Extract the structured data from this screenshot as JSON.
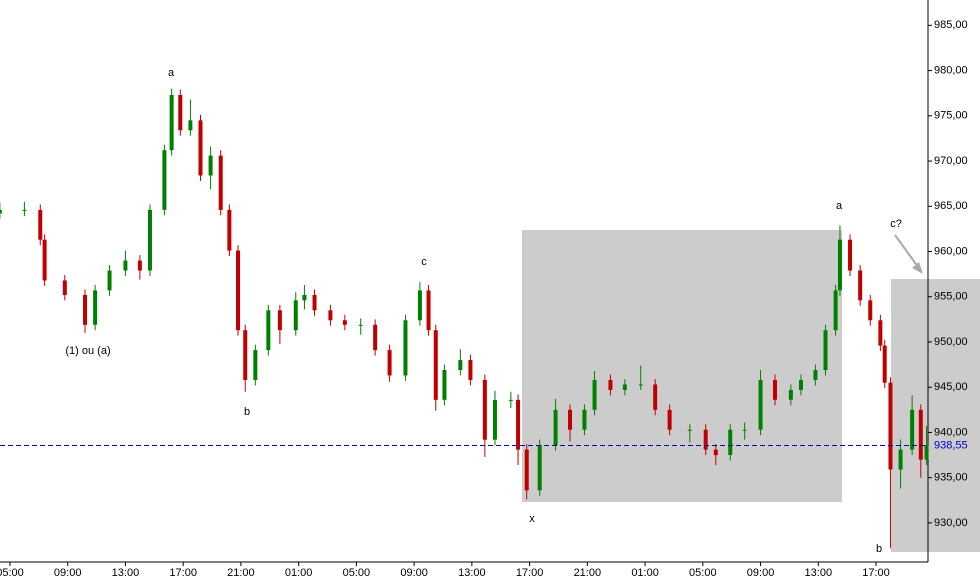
{
  "chart_data": {
    "type": "candlestick",
    "up_color": "#008000",
    "down_color": "#c00000",
    "x": [
      -0.7,
      1.0,
      2.1,
      2.4,
      3.8,
      5.2,
      5.9,
      6.9,
      8.0,
      9.0,
      9.7,
      10.7,
      11.2,
      11.8,
      12.5,
      13.2,
      13.9,
      14.6,
      15.2,
      15.8,
      16.3,
      17.0,
      17.9,
      18.7,
      19.8,
      20.4,
      21.1,
      22.2,
      23.2,
      24.3,
      25.3,
      26.3,
      27.4,
      28.4,
      29.0,
      29.5,
      30.1,
      31.2,
      31.9,
      32.9,
      33.6,
      34.7,
      35.2,
      35.8,
      36.7,
      37.8,
      38.8,
      39.8,
      40.5,
      41.6,
      42.6,
      43.7,
      44.7,
      45.7,
      47.1,
      48.2,
      48.9,
      49.9,
      50.9,
      52.0,
      53.0,
      54.1,
      54.8,
      55.8,
      56.5,
      57.2,
      57.5,
      58.2,
      58.9,
      59.6,
      60.3,
      60.6,
      61.0,
      61.7,
      62.5,
      63.1,
      63.5
    ],
    "open": [
      964.2,
      964.6,
      964.6,
      961.3,
      956.8,
      955.2,
      951.9,
      955.7,
      957.9,
      959.0,
      957.9,
      964.6,
      971.2,
      977.3,
      973.4,
      974.5,
      968.4,
      970.6,
      964.6,
      960.1,
      951.3,
      945.8,
      949.1,
      953.5,
      951.3,
      954.6,
      955.2,
      953.5,
      952.4,
      951.9,
      951.9,
      949.1,
      946.3,
      952.4,
      955.7,
      951.3,
      943.6,
      946.9,
      948.0,
      945.8,
      939.2,
      943.6,
      943.6,
      938.1,
      933.6,
      938.6,
      942.5,
      940.3,
      942.5,
      945.8,
      944.7,
      945.3,
      945.3,
      942.5,
      940.3,
      940.3,
      938.1,
      937.5,
      940.3,
      940.3,
      945.8,
      943.6,
      944.7,
      945.8,
      946.9,
      951.3,
      955.7,
      961.3,
      957.9,
      954.6,
      952.4,
      949.6,
      945.5,
      935.9,
      938.1,
      942.5,
      937.0
    ],
    "high": [
      965.4,
      965.5,
      965.2,
      961.9,
      957.4,
      955.8,
      956.3,
      958.5,
      960.1,
      959.6,
      965.2,
      971.8,
      978.0,
      977.9,
      976.8,
      975.1,
      971.6,
      971.2,
      965.2,
      960.7,
      951.9,
      949.7,
      954.1,
      954.1,
      955.5,
      956.3,
      955.8,
      954.1,
      953.0,
      952.6,
      952.5,
      949.7,
      953.0,
      956.6,
      956.3,
      951.9,
      947.5,
      949.2,
      948.6,
      946.4,
      944.6,
      944.5,
      944.2,
      938.7,
      939.2,
      943.7,
      943.1,
      943.1,
      946.8,
      946.4,
      945.9,
      947.4,
      945.9,
      943.1,
      940.9,
      940.9,
      938.7,
      940.9,
      941.1,
      946.9,
      946.4,
      945.3,
      946.4,
      947.5,
      951.9,
      956.3,
      962.9,
      961.9,
      958.5,
      955.2,
      953.0,
      950.2,
      946.1,
      939.2,
      944.1,
      943.1,
      940.7
    ],
    "low": [
      963.6,
      963.9,
      960.7,
      956.2,
      954.6,
      951.0,
      951.3,
      955.1,
      957.3,
      956.9,
      957.3,
      964.0,
      970.6,
      972.8,
      972.8,
      967.8,
      966.9,
      964.0,
      959.5,
      950.7,
      944.5,
      945.2,
      948.5,
      949.8,
      950.7,
      953.6,
      952.9,
      951.8,
      951.3,
      950.8,
      948.5,
      945.6,
      945.7,
      951.8,
      950.7,
      942.4,
      943.0,
      946.3,
      945.2,
      937.3,
      938.6,
      942.7,
      936.4,
      932.6,
      933.0,
      938.0,
      939.0,
      939.7,
      941.9,
      944.1,
      944.1,
      944.7,
      941.9,
      939.7,
      938.9,
      937.5,
      936.4,
      936.9,
      939.2,
      939.7,
      943.0,
      943.0,
      944.1,
      945.2,
      946.3,
      950.7,
      955.1,
      957.3,
      954.0,
      951.8,
      949.0,
      944.9,
      927.2,
      933.8,
      937.5,
      935.0,
      936.4
    ],
    "close": [
      964.6,
      964.6,
      961.3,
      956.8,
      955.2,
      951.9,
      955.7,
      957.9,
      959.0,
      957.9,
      964.6,
      971.2,
      977.3,
      973.4,
      974.5,
      968.4,
      970.6,
      964.6,
      960.1,
      951.3,
      945.8,
      949.1,
      953.5,
      951.3,
      954.6,
      955.2,
      953.5,
      952.4,
      951.9,
      951.9,
      949.1,
      946.3,
      952.4,
      955.7,
      951.3,
      943.6,
      946.9,
      948.0,
      945.8,
      939.2,
      943.6,
      943.6,
      938.1,
      933.6,
      938.6,
      942.5,
      940.3,
      942.5,
      945.8,
      944.7,
      945.3,
      945.3,
      942.5,
      940.3,
      940.3,
      938.1,
      937.5,
      940.3,
      940.3,
      945.8,
      943.6,
      944.7,
      945.8,
      946.9,
      951.3,
      955.7,
      961.3,
      957.9,
      954.6,
      952.4,
      949.6,
      945.5,
      935.9,
      938.1,
      942.5,
      937.0,
      938.6
    ],
    "xlim": [
      -0.69,
      63.6
    ],
    "xticks": [
      {
        "value": 0,
        "label": "05:00"
      },
      {
        "value": 4,
        "label": "09:00"
      },
      {
        "value": 8,
        "label": "13:00"
      },
      {
        "value": 12,
        "label": "17:00"
      },
      {
        "value": 16,
        "label": "21:00"
      },
      {
        "value": 20,
        "label": "01:00"
      },
      {
        "value": 24,
        "label": "05:00"
      },
      {
        "value": 28,
        "label": "09:00"
      },
      {
        "value": 32,
        "label": "13:00"
      },
      {
        "value": 36,
        "label": "17:00"
      },
      {
        "value": 40,
        "label": "21:00"
      },
      {
        "value": 44,
        "label": "01:00"
      },
      {
        "value": 48,
        "label": "05:00"
      },
      {
        "value": 52,
        "label": "09:00"
      },
      {
        "value": 56,
        "label": "13:00"
      },
      {
        "value": 60,
        "label": "17:00"
      }
    ],
    "ylim": [
      925.9,
      987.8
    ],
    "yticks": [
      {
        "value": 930,
        "label": "930,00"
      },
      {
        "value": 935,
        "label": "935,00"
      },
      {
        "value": 940,
        "label": "940,00"
      },
      {
        "value": 945,
        "label": "945,00"
      },
      {
        "value": 950,
        "label": "950,00"
      },
      {
        "value": 955,
        "label": "955,00"
      },
      {
        "value": 960,
        "label": "960,00"
      },
      {
        "value": 965,
        "label": "965,00"
      },
      {
        "value": 970,
        "label": "970,00"
      },
      {
        "value": 975,
        "label": "975,00"
      },
      {
        "value": 980,
        "label": "980,00"
      },
      {
        "value": 985,
        "label": "985,00"
      }
    ],
    "last_price": {
      "value": 938.55,
      "label": "938,55"
    },
    "annotations": [
      "a",
      "(1) ou (a)",
      "b",
      "c",
      "x",
      "a",
      "c?",
      "b"
    ]
  }
}
